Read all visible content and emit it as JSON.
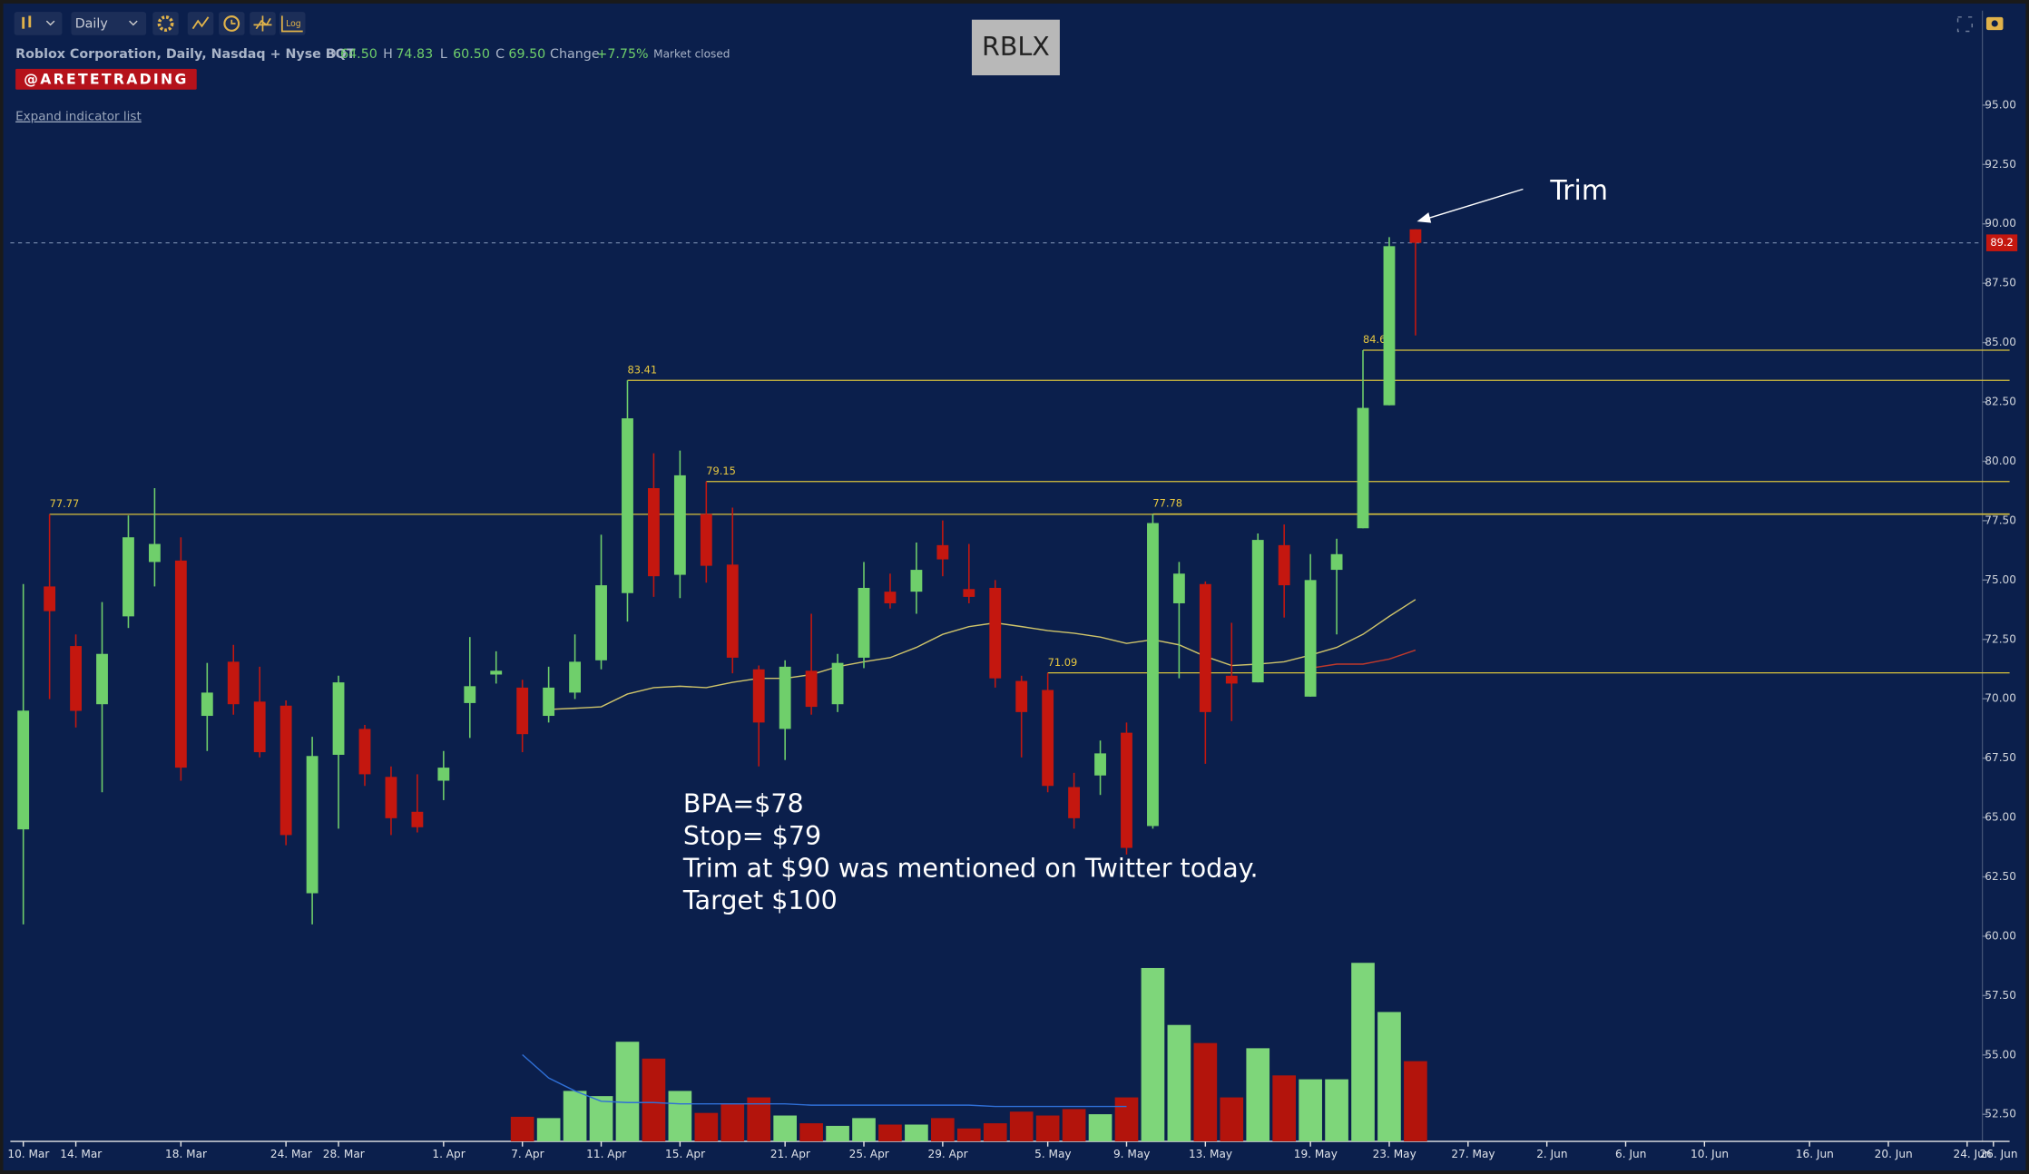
{
  "toolbar": {
    "interval": "Daily",
    "log": "Log"
  },
  "legend": {
    "description": "Roblox Corporation, Daily, Nasdaq + Nyse BQT",
    "stats": [
      {
        "key": "O",
        "value": "64.50"
      },
      {
        "key": "H",
        "value": "74.83"
      },
      {
        "key": "L",
        "value": "60.50"
      },
      {
        "key": "C",
        "value": "69.50"
      }
    ],
    "change_key": "Change",
    "change_value": "+7.75%",
    "status": "Market closed"
  },
  "watermark": "@ARETETRADING",
  "expand_link": "Expand indicator list",
  "chart_data": {
    "type": "candlestick",
    "title": "RBLX",
    "annotation": "Trim",
    "notes": [
      "BPA=$78",
      "Stop= $79",
      "Trim at $90 was mentioned on Twitter today.",
      "Target $100"
    ],
    "up_color": "#6fcf6b",
    "down_color": "#c4170f",
    "level_color": "#d9c23c",
    "categories": [
      "10. Mar",
      null,
      "14. Mar",
      null,
      null,
      null,
      "18. Mar",
      null,
      null,
      null,
      "24. Mar",
      null,
      "28. Mar",
      null,
      null,
      null,
      "1. Apr",
      null,
      null,
      "7. Apr",
      null,
      null,
      "11. Apr",
      null,
      null,
      "15. Apr",
      null,
      null,
      null,
      "21. Apr",
      null,
      null,
      "25. Apr",
      null,
      null,
      "29. Apr",
      null,
      null,
      null,
      "5. May",
      null,
      null,
      "9. May",
      null,
      null,
      "13. May",
      null,
      null,
      null,
      "19. May",
      null,
      null,
      "23. May",
      null,
      null,
      "27. May",
      null,
      null,
      "2. Jun",
      null,
      null,
      "6. Jun",
      null,
      null,
      "10. Jun",
      null,
      null,
      null,
      "16. Jun",
      null,
      null,
      "20. Jun",
      null,
      null,
      "24. Jun",
      "26. Jun"
    ],
    "open": [
      64.5,
      74.73,
      72.22,
      69.77,
      73.47,
      75.76,
      75.82,
      69.28,
      71.56,
      69.88,
      69.71,
      61.81,
      67.64,
      68.73,
      66.71,
      65.24,
      66.55,
      69.82,
      71.02,
      70.47,
      69.28,
      70.26,
      71.62,
      74.45,
      78.87,
      75.22,
      77.78,
      75.65,
      71.24,
      68.73,
      71.18,
      69.77,
      71.73,
      74.51,
      74.51,
      76.47,
      74.62,
      74.67,
      70.75,
      70.37,
      66.28,
      66.77,
      68.57,
      64.64,
      74.02,
      74.83,
      70.97,
      70.69,
      76.47,
      70.09,
      75.43,
      77.18,
      82.36,
      89.77,
      null,
      null,
      null,
      null,
      null,
      null,
      null,
      null,
      null,
      null,
      null,
      null,
      null,
      null,
      null,
      null,
      null,
      null,
      null,
      null,
      null,
      null
    ],
    "high": [
      74.83,
      77.77,
      72.71,
      74.07,
      77.72,
      78.87,
      76.8,
      71.51,
      72.27,
      71.35,
      69.93,
      68.4,
      70.97,
      68.9,
      67.15,
      66.82,
      67.8,
      72.6,
      72.0,
      70.8,
      71.35,
      72.71,
      76.91,
      83.41,
      80.34,
      80.45,
      79.15,
      78.05,
      71.4,
      71.62,
      73.58,
      71.89,
      75.76,
      75.27,
      76.58,
      77.51,
      76.52,
      75.0,
      70.97,
      71.09,
      66.88,
      68.24,
      69.0,
      77.78,
      75.76,
      74.94,
      73.2,
      76.96,
      77.34,
      76.09,
      76.74,
      84.68,
      89.44,
      89.77,
      null,
      null,
      null,
      null,
      null,
      null,
      null,
      null,
      null,
      null,
      null,
      null,
      null,
      null,
      null,
      null,
      null,
      null,
      null,
      null,
      null,
      null
    ],
    "low": [
      60.5,
      69.99,
      68.79,
      66.06,
      72.98,
      74.73,
      66.55,
      67.8,
      69.33,
      67.53,
      63.83,
      60.5,
      64.53,
      66.33,
      64.26,
      64.37,
      65.73,
      68.35,
      70.64,
      67.75,
      69.0,
      69.99,
      71.24,
      73.25,
      74.29,
      74.24,
      74.89,
      71.07,
      67.15,
      67.42,
      69.33,
      69.44,
      71.29,
      73.8,
      73.58,
      75.16,
      74.02,
      70.47,
      67.53,
      66.06,
      64.53,
      65.95,
      63.44,
      64.53,
      70.86,
      67.26,
      69.06,
      70.69,
      73.42,
      70.09,
      72.71,
      77.18,
      82.36,
      85.3,
      null,
      null,
      null,
      null,
      null,
      null,
      null,
      null,
      null,
      null,
      null,
      null,
      null,
      null,
      null,
      null,
      null,
      null,
      null,
      null,
      null,
      null
    ],
    "close": [
      69.5,
      73.69,
      69.49,
      71.89,
      76.8,
      76.52,
      67.1,
      70.26,
      69.77,
      67.75,
      64.26,
      67.59,
      70.69,
      66.82,
      64.97,
      64.59,
      67.1,
      70.53,
      71.18,
      68.51,
      70.47,
      71.56,
      74.78,
      81.81,
      75.16,
      79.41,
      75.6,
      71.73,
      69.0,
      71.35,
      69.66,
      71.51,
      74.67,
      74.02,
      75.43,
      75.87,
      74.29,
      70.86,
      69.44,
      66.33,
      64.97,
      67.7,
      63.72,
      77.4,
      75.27,
      69.44,
      70.64,
      76.69,
      74.78,
      75.0,
      76.09,
      82.25,
      89.06,
      89.2,
      null,
      null,
      null,
      null,
      null,
      null,
      null,
      null,
      null,
      null,
      null,
      null,
      null,
      null,
      null,
      null,
      null,
      null,
      null,
      null,
      null,
      null
    ],
    "volume": [
      null,
      null,
      null,
      null,
      null,
      null,
      null,
      null,
      null,
      null,
      null,
      null,
      null,
      null,
      null,
      null,
      null,
      null,
      null,
      19,
      18,
      39,
      35,
      77,
      64,
      39,
      22,
      29,
      34,
      20,
      14,
      12,
      18,
      13,
      13,
      18,
      10,
      14,
      23,
      20,
      25,
      21,
      34,
      134,
      90,
      76,
      34,
      72,
      51,
      48,
      48,
      138,
      100,
      62,
      null,
      null,
      null,
      null,
      null,
      null,
      null,
      null,
      null,
      null,
      null,
      null,
      null,
      null,
      null,
      null,
      null,
      null,
      null,
      null,
      null,
      null
    ],
    "moving_averages": [
      {
        "color": "#cfc46a",
        "values": [
          null,
          null,
          null,
          null,
          null,
          null,
          null,
          null,
          null,
          null,
          null,
          null,
          null,
          null,
          null,
          null,
          null,
          null,
          null,
          null,
          69.55,
          69.6,
          69.66,
          70.2,
          70.47,
          70.53,
          70.47,
          70.69,
          70.86,
          70.86,
          71.02,
          71.35,
          71.56,
          71.73,
          72.16,
          72.71,
          73.04,
          73.2,
          73.04,
          72.87,
          72.76,
          72.6,
          72.33,
          72.49,
          72.27,
          71.78,
          71.4,
          71.46,
          71.56,
          71.84,
          72.16,
          72.71,
          73.47,
          74.18,
          null,
          null,
          null,
          null,
          null,
          null,
          null,
          null,
          null,
          null,
          null,
          null,
          null,
          null,
          null,
          null,
          null,
          null,
          null,
          null,
          null,
          null
        ]
      },
      {
        "color": "#c0392b",
        "values": [
          null,
          null,
          null,
          null,
          null,
          null,
          null,
          null,
          null,
          null,
          null,
          null,
          null,
          null,
          null,
          null,
          null,
          null,
          null,
          null,
          null,
          null,
          null,
          null,
          null,
          null,
          null,
          null,
          null,
          null,
          null,
          null,
          null,
          null,
          null,
          null,
          null,
          null,
          null,
          null,
          null,
          null,
          null,
          null,
          null,
          null,
          null,
          null,
          null,
          71.29,
          71.46,
          71.46,
          71.67,
          72.05,
          null,
          null,
          null,
          null,
          null,
          null,
          null,
          null,
          null,
          null,
          null,
          null,
          null,
          null,
          null,
          null,
          null,
          null,
          null,
          null,
          null,
          null
        ]
      }
    ],
    "volume_ma": {
      "color": "#2f6fd6",
      "values": [
        null,
        null,
        null,
        null,
        null,
        null,
        null,
        null,
        null,
        null,
        null,
        null,
        null,
        null,
        null,
        null,
        null,
        null,
        null,
        67,
        49,
        39,
        31,
        30,
        30,
        29,
        29,
        29,
        29,
        29,
        28,
        28,
        28,
        28,
        28,
        28,
        28,
        27,
        27,
        27,
        27,
        27,
        27,
        null,
        null,
        null,
        null,
        null,
        null,
        null,
        null,
        null,
        null,
        null,
        null,
        null,
        null,
        null,
        null,
        null,
        null,
        null,
        null,
        null,
        null,
        null,
        null,
        null,
        null,
        null,
        null,
        null,
        null,
        null,
        null,
        null
      ]
    },
    "levels": [
      77.77,
      83.41,
      79.15,
      77.78,
      71.09,
      84.68
    ],
    "last_price": 89.2,
    "ylim": [
      51.36,
      98.98
    ],
    "yticks": [
      {
        "value": 52.5,
        "label": "52.50"
      },
      {
        "value": 55,
        "label": "55.00"
      },
      {
        "value": 57.5,
        "label": "57.50"
      },
      {
        "value": 60,
        "label": "60.00"
      },
      {
        "value": 62.5,
        "label": "62.50"
      },
      {
        "value": 65,
        "label": "65.00"
      },
      {
        "value": 67.5,
        "label": "67.50"
      },
      {
        "value": 70,
        "label": "70.00"
      },
      {
        "value": 72.5,
        "label": "72.50"
      },
      {
        "value": 75,
        "label": "75.00"
      },
      {
        "value": 77.5,
        "label": "77.50"
      },
      {
        "value": 80,
        "label": "80.00"
      },
      {
        "value": 82.5,
        "label": "82.50"
      },
      {
        "value": 85,
        "label": "85.00"
      },
      {
        "value": 87.5,
        "label": "87.50"
      },
      {
        "value": 90,
        "label": "90.00"
      },
      {
        "value": 92.5,
        "label": "92.50"
      },
      {
        "value": 95,
        "label": "95.00"
      }
    ],
    "grid": false
  }
}
